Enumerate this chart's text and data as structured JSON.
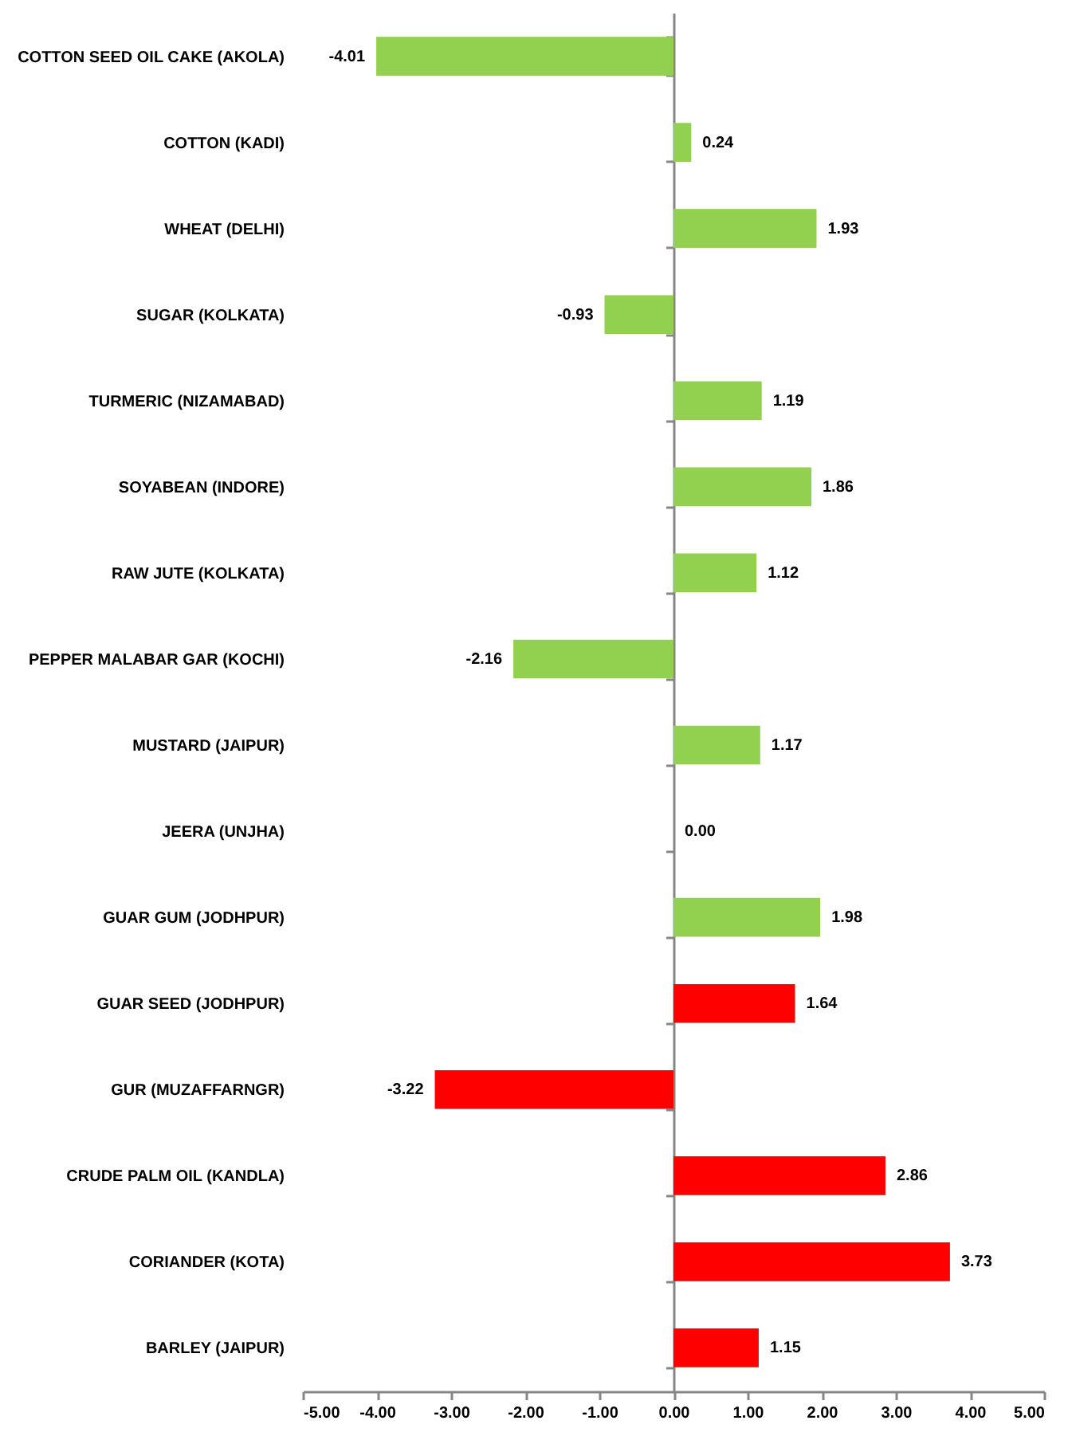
{
  "chart_data": {
    "type": "bar",
    "orientation": "horizontal",
    "categories": [
      "COTTON SEED OIL CAKE (AKOLA)",
      "COTTON (KADI)",
      "WHEAT (DELHI)",
      "SUGAR (KOLKATA)",
      "TURMERIC (NIZAMABAD)",
      "SOYABEAN (INDORE)",
      "RAW JUTE (KOLKATA)",
      "PEPPER MALABAR GAR (KOCHI)",
      "MUSTARD (JAIPUR)",
      "JEERA (UNJHA)",
      "GUAR GUM (JODHPUR)",
      "GUAR SEED (JODHPUR)",
      "GUR (MUZAFFARNGR)",
      "CRUDE PALM OIL (KANDLA)",
      "CORIANDER (KOTA)",
      "BARLEY (JAIPUR)"
    ],
    "values": [
      -4.01,
      0.24,
      1.93,
      -0.93,
      1.19,
      1.86,
      1.12,
      -2.16,
      1.17,
      0,
      1.98,
      1.64,
      -3.22,
      2.86,
      3.73,
      1.15
    ],
    "value_labels": [
      "-4.01",
      "0.24",
      "1.93",
      "-0.93",
      "1.19",
      "1.86",
      "1.12",
      "-2.16",
      "1.17",
      "0.00",
      "1.98",
      "1.64",
      "-3.22",
      "2.86",
      "3.73",
      "1.15"
    ],
    "colors": [
      "#92d050",
      "#92d050",
      "#92d050",
      "#92d050",
      "#92d050",
      "#92d050",
      "#92d050",
      "#92d050",
      "#92d050",
      "#92d050",
      "#92d050",
      "#ff0000",
      "#ff0000",
      "#ff0000",
      "#ff0000",
      "#ff0000"
    ],
    "xlim": [
      -5,
      5
    ],
    "xticks": [
      {
        "value": -5,
        "label": "-5.00"
      },
      {
        "value": -4,
        "label": "-4.00"
      },
      {
        "value": -3,
        "label": "-3.00"
      },
      {
        "value": -2,
        "label": "-2.00"
      },
      {
        "value": -1,
        "label": "-1.00"
      },
      {
        "value": 0,
        "label": "0.00"
      },
      {
        "value": 1,
        "label": "1.00"
      },
      {
        "value": 2,
        "label": "2.00"
      },
      {
        "value": 3,
        "label": "3.00"
      },
      {
        "value": 4,
        "label": "4.00"
      },
      {
        "value": 5,
        "label": "5.00"
      }
    ]
  }
}
